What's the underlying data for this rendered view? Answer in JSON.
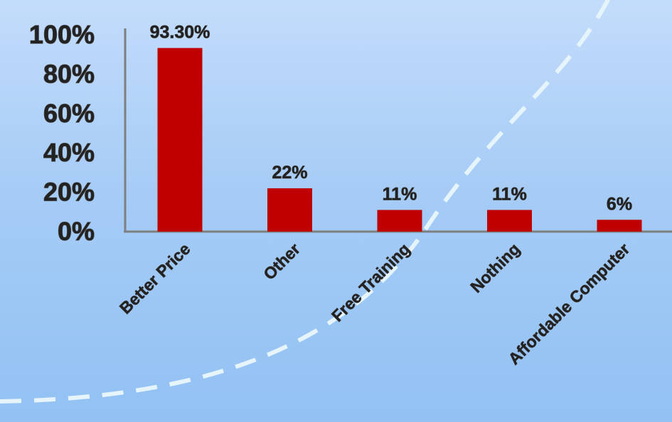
{
  "colors": {
    "bar": "#c00000",
    "axis": "#7f7f7f",
    "curve": "#e6f4fb"
  },
  "chart_data": {
    "type": "bar",
    "categories": [
      "Better Price",
      "Other",
      "Free Training",
      "Nothing",
      "Affordable Computer"
    ],
    "values": [
      93.3,
      22,
      11,
      11,
      6
    ],
    "data_labels": [
      "93.30%",
      "22%",
      "11%",
      "11%",
      "6%"
    ],
    "y_ticks": [
      "0%",
      "20%",
      "40%",
      "60%",
      "80%",
      "100%"
    ],
    "ylim": [
      0,
      100
    ],
    "title": "",
    "xlabel": "",
    "ylabel": "",
    "grid": false,
    "legend": "none"
  }
}
